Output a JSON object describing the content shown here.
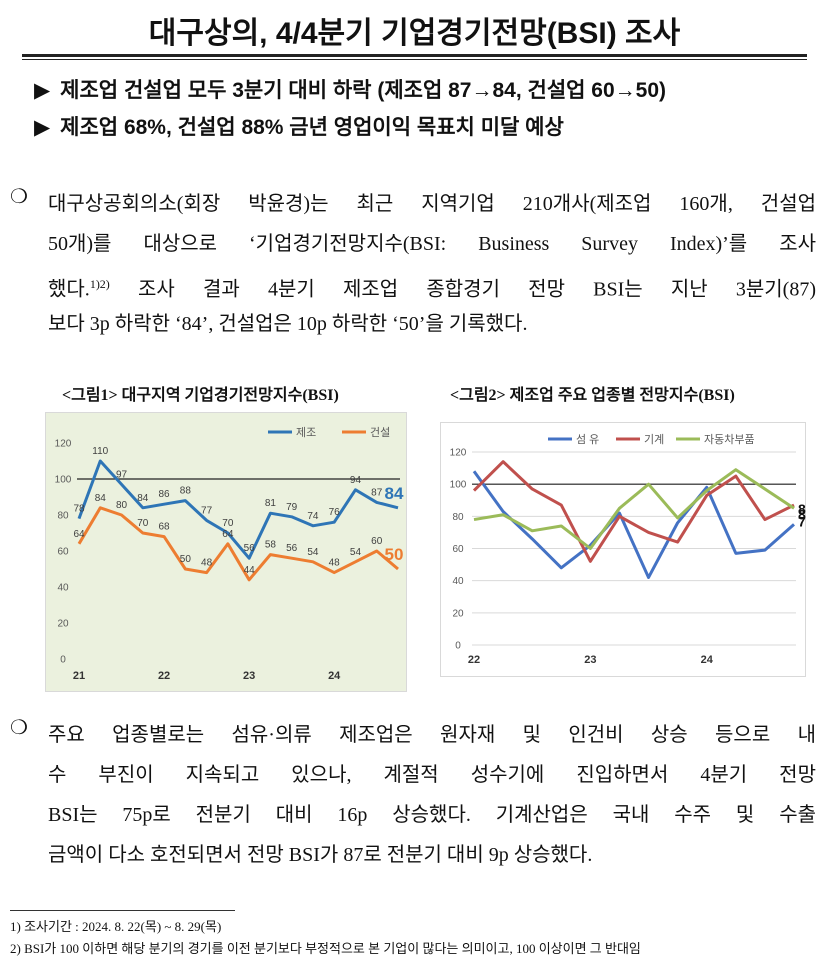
{
  "header": {
    "title": "대구상의, 4/4분기 기업경기전망(BSI) 조사"
  },
  "bullets": [
    {
      "marker": "▶",
      "text": "제조업 건설업 모두 3분기 대비 하락 (제조업 87→84, 건설업 60→50)"
    },
    {
      "marker": "▶",
      "text": "제조업 68%, 건설업 88% 금년 영업이익 목표치 미달 예상"
    }
  ],
  "paragraphs": [
    {
      "marker": "❍",
      "lines": [
        "대구상공회의소(회장 박윤경)는 최근 지역기업 210개사(제조업 160개, 건설업",
        "50개)를 대상으로 ‘기업경기전망지수(BSI: Business Survey Index)’를 조사",
        {
          "before": "했다.",
          "sup": "1)2)",
          "after": " 조사 결과 4분기 제조업 종합경기 전망 BSI는 지난 3분기(87)"
        },
        "보다 3p 하락한 ‘84’, 건설업은 10p 하락한 ‘50’을 기록했다."
      ]
    },
    {
      "marker": "❍",
      "lines": [
        "주요 업종별로는 섬유·의류 제조업은 원자재 및 인건비 상승 등으로 내",
        "수 부진이 지속되고 있으나, 계절적 성수기에 진입하면서 4분기 전망",
        "BSI는 75p로 전분기 대비 16p 상승했다. 기계산업은 국내 수주 및 수출",
        "금액이 다소 호전되면서 전망 BSI가 87로 전분기 대비 9p 상승했다."
      ]
    }
  ],
  "footnotes": [
    "1) 조사기간 : 2024. 8. 22(목) ~ 8. 29(목)",
    "2) BSI가 100 이하면 해당 분기의 경기를 이전 분기보다 부정적으로 본 기업이 많다는 의미이고, 100 이상이면 그 반대임"
  ],
  "chart_data": [
    {
      "type": "line",
      "title": "<그림1> 대구지역 기업경기전망지수(BSI)",
      "categories": [
        "21",
        null,
        null,
        null,
        "22",
        null,
        null,
        null,
        "23",
        null,
        null,
        null,
        "24",
        null,
        null,
        null
      ],
      "series": [
        {
          "name": "제조",
          "color": "#2e75b6",
          "values": [
            78,
            110,
            97,
            84,
            86,
            88,
            77,
            70,
            56,
            81,
            79,
            74,
            76,
            94,
            87,
            84
          ]
        },
        {
          "name": "건설",
          "color": "#ed7d31",
          "values": [
            64,
            84,
            80,
            70,
            68,
            50,
            48,
            64,
            44,
            58,
            56,
            54,
            48,
            54,
            60,
            50
          ]
        }
      ],
      "ylim": [
        0,
        120
      ],
      "yticks": [
        0,
        20,
        40,
        60,
        80,
        100,
        120
      ],
      "reference_line": 100,
      "grid": false,
      "legend": "top-right",
      "data_labels": "all",
      "background": "#ebf1de"
    },
    {
      "type": "line",
      "title": "<그림2> 제조업 주요 업종별 전망지수(BSI)",
      "categories": [
        "22",
        null,
        null,
        null,
        "23",
        null,
        null,
        null,
        "24",
        null,
        null,
        null
      ],
      "series": [
        {
          "name": "섬 유",
          "color": "#4472c4",
          "values": [
            108,
            83,
            66,
            48,
            62,
            82,
            42,
            76,
            98,
            57,
            59,
            75
          ]
        },
        {
          "name": "기계",
          "color": "#c0504d",
          "values": [
            96,
            114,
            97,
            87,
            52,
            80,
            70,
            64,
            93,
            105,
            78,
            87
          ]
        },
        {
          "name": "자동차부품",
          "color": "#9bbb59",
          "values": [
            78,
            81,
            71,
            74,
            60,
            85,
            100,
            79,
            96,
            109,
            97,
            85
          ]
        }
      ],
      "ylim": [
        0,
        120
      ],
      "yticks": [
        0,
        20,
        40,
        60,
        80,
        100,
        120
      ],
      "reference_line": 100,
      "grid": true,
      "legend": "top",
      "data_labels": "last",
      "background": "#ffffff"
    }
  ]
}
